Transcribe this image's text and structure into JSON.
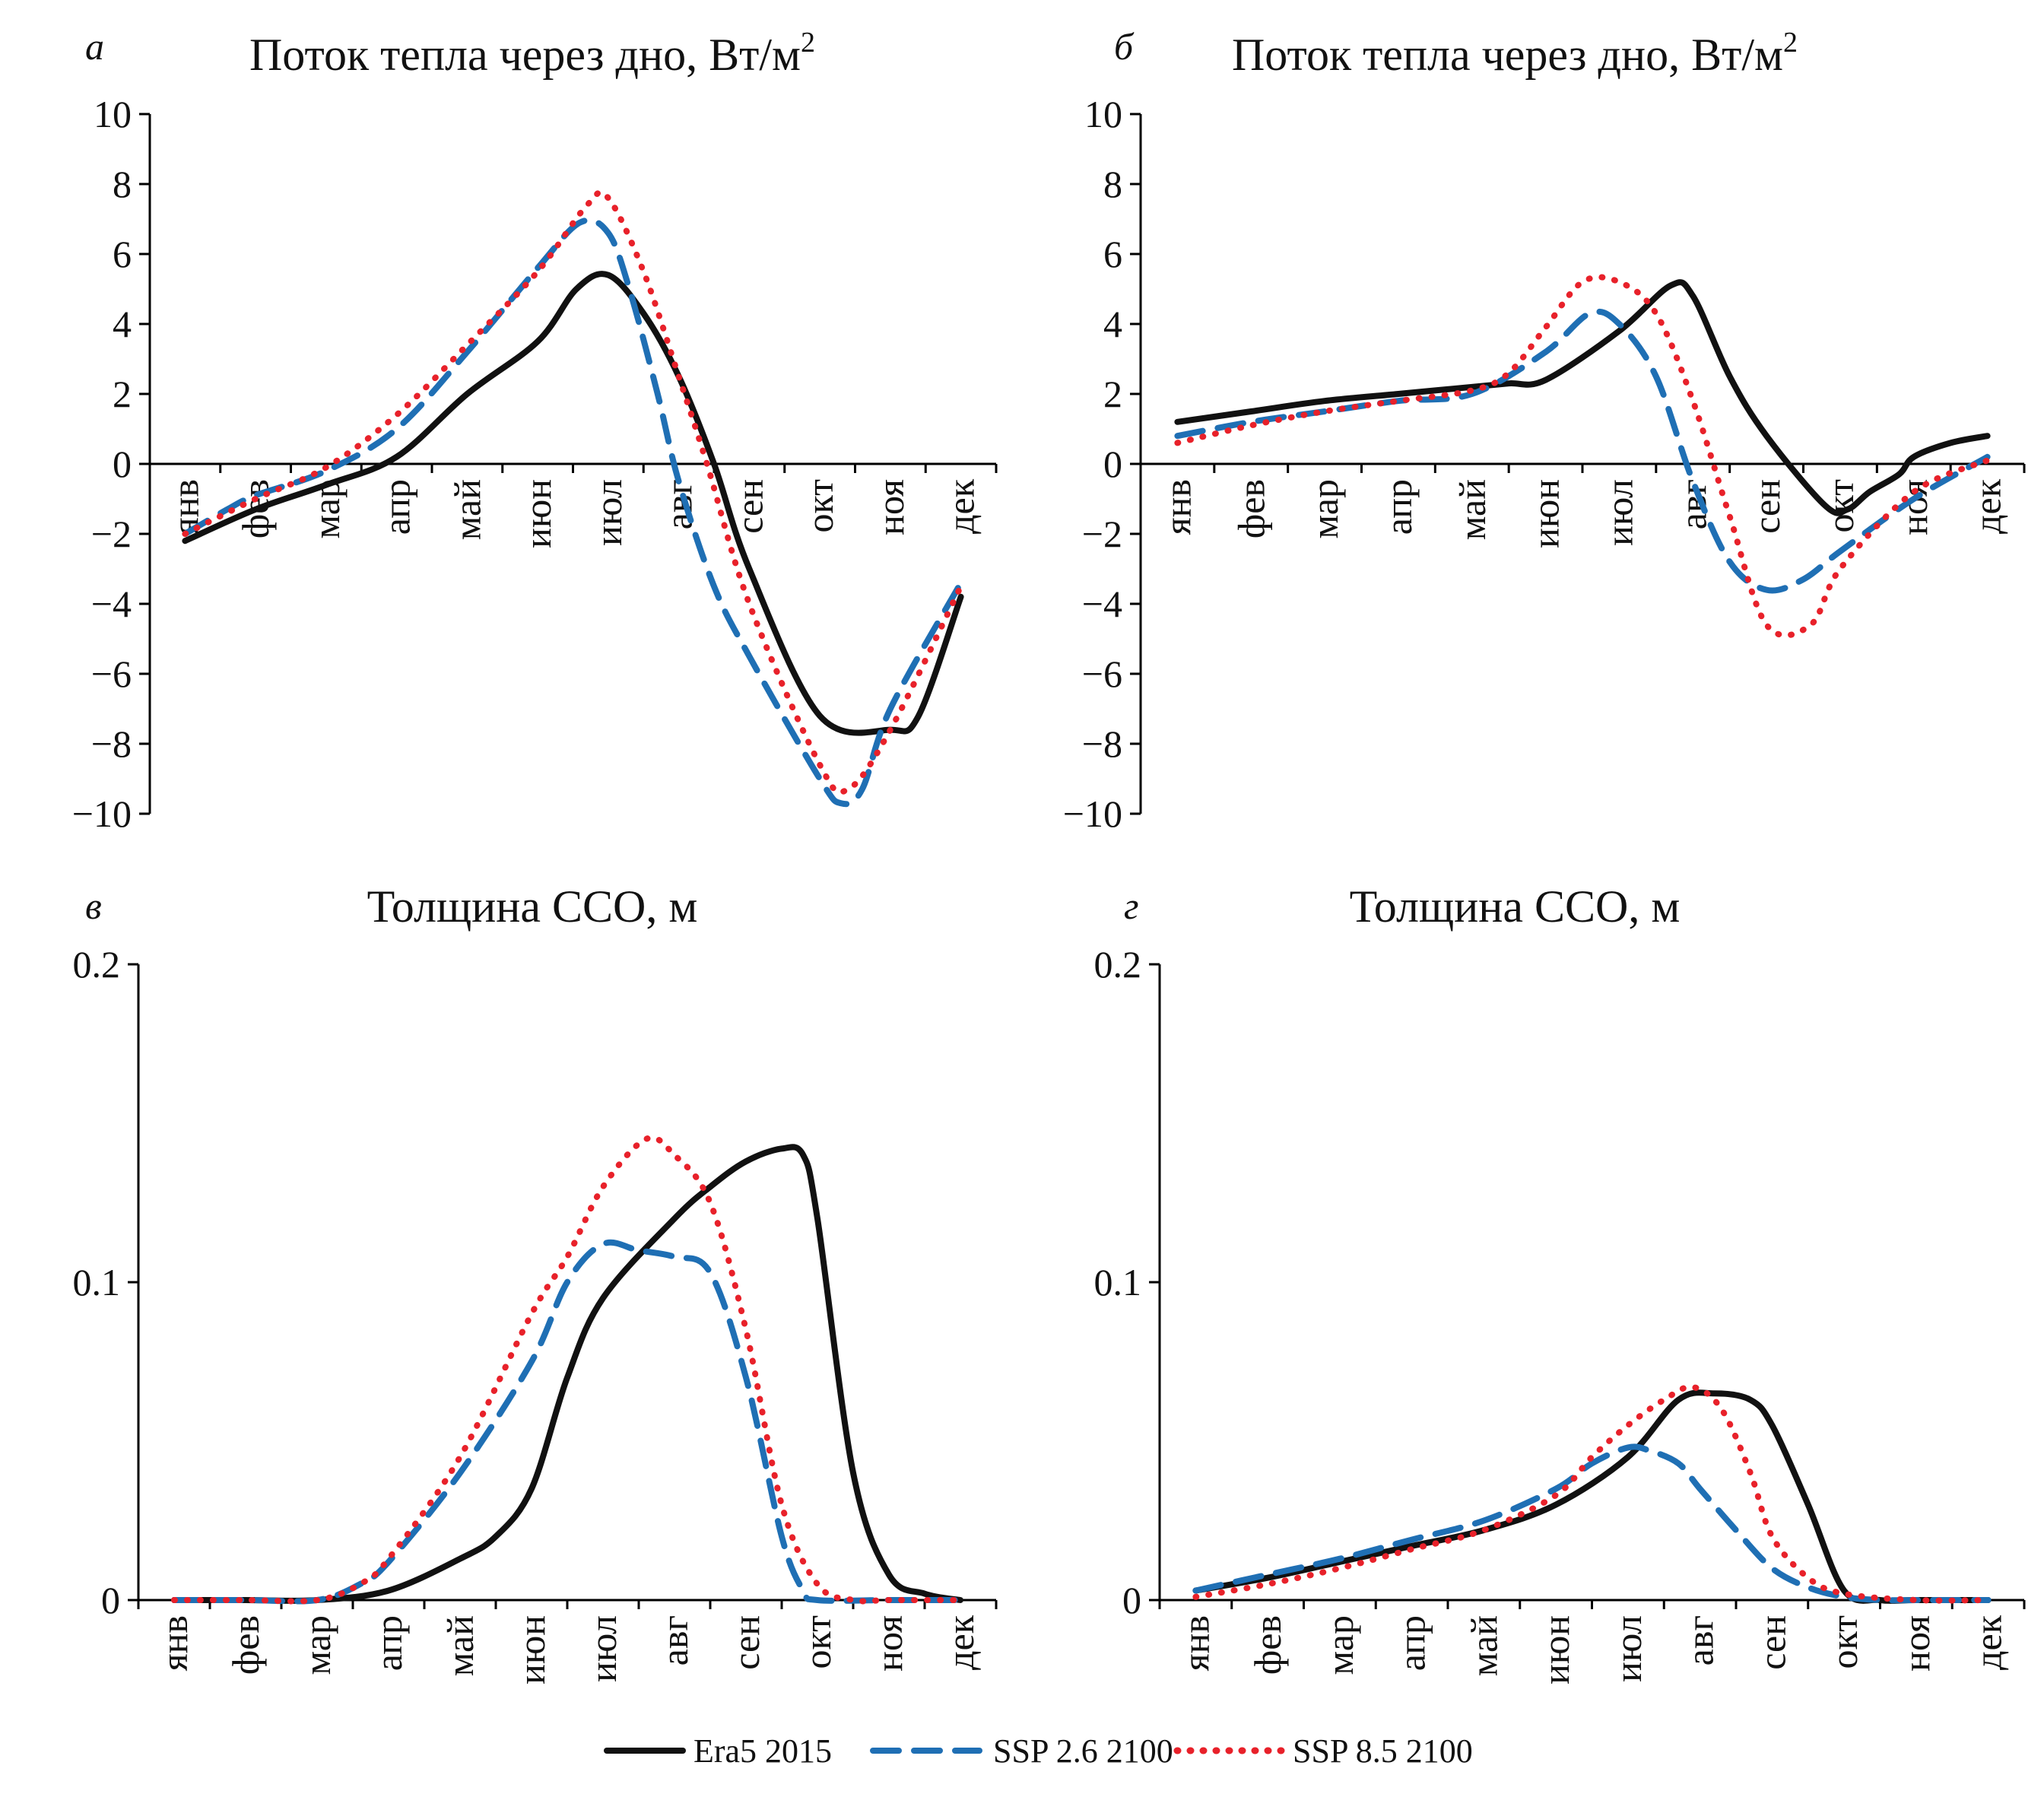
{
  "colors": {
    "Era5 2015": "#111111",
    "SSP 2.6 2100": "#1f6fb4",
    "SSP 8.5 2100": "#e8212a"
  },
  "legend": [
    "Era5 2015",
    "SSP 2.6 2100",
    "SSP 8.5 2100"
  ],
  "chart_data": [
    {
      "panel": "а",
      "type": "line",
      "title": "Поток тепла через дно, Вт/м",
      "title_sup": "2",
      "categories": [
        "янв",
        "фев",
        "мар",
        "апр",
        "май",
        "июн",
        "июл",
        "авг",
        "сен",
        "окт",
        "ноя",
        "дек"
      ],
      "ylim": [
        -10,
        10
      ],
      "yticks": [
        10,
        8,
        6,
        4,
        2,
        0,
        -2,
        -4,
        -6,
        -8,
        -10
      ],
      "ytick_labels": [
        "10",
        "8",
        "6",
        "4",
        "2",
        "0",
        "−2",
        "−4",
        "−6",
        "−8",
        "−10"
      ],
      "series": [
        {
          "name": "Era5 2015",
          "style": "solid",
          "x": [
            0,
            1,
            2,
            3,
            4,
            5,
            5.55,
            6,
            6.5,
            7,
            7.5,
            8,
            9,
            10,
            10.4,
            11
          ],
          "values": [
            -2.2,
            -1.3,
            -0.6,
            0.2,
            2.0,
            3.5,
            5.0,
            5.4,
            4.3,
            2.5,
            0.0,
            -3.0,
            -7.2,
            -7.6,
            -7.2,
            -3.8
          ]
        },
        {
          "name": "SSP 2.6 2100",
          "style": "dashed",
          "x": [
            0,
            0.6,
            1,
            2,
            3,
            4,
            5,
            5.6,
            6,
            6.3,
            6.7,
            7,
            7.5,
            8,
            9,
            9.3,
            9.6,
            10,
            11
          ],
          "values": [
            -2.0,
            -1.3,
            -0.9,
            -0.2,
            1.0,
            3.2,
            5.6,
            6.9,
            6.6,
            5.0,
            2.0,
            -0.5,
            -3.5,
            -5.5,
            -9.0,
            -9.7,
            -9.3,
            -7.0,
            -3.4
          ]
        },
        {
          "name": "SSP 8.5 2100",
          "style": "dotted",
          "x": [
            0,
            1,
            2,
            3,
            4,
            5,
            5.7,
            6,
            6.5,
            7,
            7.4,
            8,
            9,
            9.4,
            10,
            11
          ],
          "values": [
            -2.0,
            -1.0,
            -0.1,
            1.4,
            3.4,
            5.5,
            7.4,
            7.6,
            5.5,
            2.5,
            0.0,
            -4.0,
            -8.6,
            -9.3,
            -7.6,
            -3.5
          ]
        }
      ]
    },
    {
      "panel": "б",
      "type": "line",
      "title": "Поток тепла через дно, Вт/м",
      "title_sup": "2",
      "categories": [
        "янв",
        "фев",
        "мар",
        "апр",
        "май",
        "июн",
        "июл",
        "авг",
        "сен",
        "окт",
        "ноя",
        "дек"
      ],
      "ylim": [
        -10,
        10
      ],
      "yticks": [
        10,
        8,
        6,
        4,
        2,
        0,
        -2,
        -4,
        -6,
        -8,
        -10
      ],
      "ytick_labels": [
        "10",
        "8",
        "6",
        "4",
        "2",
        "0",
        "−2",
        "−4",
        "−6",
        "−8",
        "−10"
      ],
      "series": [
        {
          "name": "Era5 2015",
          "style": "solid",
          "x": [
            0,
            1,
            2,
            3,
            4,
            4.5,
            5,
            6,
            6.7,
            7,
            7.5,
            8,
            8.8,
            9.1,
            9.4,
            9.8,
            10,
            10.5,
            11
          ],
          "values": [
            1.2,
            1.5,
            1.8,
            2.0,
            2.2,
            2.3,
            2.4,
            3.8,
            5.1,
            4.8,
            2.5,
            0.8,
            -1.2,
            -1.3,
            -0.8,
            -0.3,
            0.2,
            0.6,
            0.8
          ]
        },
        {
          "name": "SSP 2.6 2100",
          "style": "dashed",
          "x": [
            0,
            1,
            2,
            3,
            4,
            5,
            5.6,
            6,
            6.5,
            7,
            7.5,
            8,
            8.5,
            9,
            10,
            11
          ],
          "values": [
            0.8,
            1.2,
            1.5,
            1.8,
            2.0,
            3.2,
            4.3,
            4.0,
            2.5,
            -0.5,
            -2.8,
            -3.6,
            -3.3,
            -2.5,
            -1.0,
            0.2
          ]
        },
        {
          "name": "SSP 8.5 2100",
          "style": "dotted",
          "x": [
            0,
            1,
            2,
            3,
            4,
            4.5,
            5,
            5.5,
            6,
            6.5,
            7,
            7.5,
            8,
            8.6,
            9,
            10,
            11
          ],
          "values": [
            0.6,
            1.1,
            1.5,
            1.8,
            2.1,
            2.6,
            3.9,
            5.2,
            5.2,
            4.3,
            1.8,
            -1.5,
            -4.6,
            -4.6,
            -3.0,
            -0.8,
            0.1
          ]
        }
      ]
    },
    {
      "panel": "в",
      "type": "line",
      "title": "Толщина ССО, м",
      "categories": [
        "янв",
        "фев",
        "мар",
        "апр",
        "май",
        "июн",
        "июл",
        "авг",
        "сен",
        "окт",
        "ноя",
        "дек"
      ],
      "ylim": [
        0,
        0.2
      ],
      "yticks": [
        0.2,
        0.1,
        0
      ],
      "ytick_labels": [
        "0.2",
        "0.1",
        "0"
      ],
      "series": [
        {
          "name": "Era5 2015",
          "style": "solid",
          "x": [
            0,
            1,
            2,
            3,
            4,
            4.5,
            5,
            5.5,
            6,
            7,
            7.5,
            8,
            8.5,
            8.8,
            9,
            9.5,
            10,
            10.5,
            11
          ],
          "values": [
            0,
            0,
            0,
            0.003,
            0.013,
            0.02,
            0.035,
            0.07,
            0.095,
            0.12,
            0.13,
            0.138,
            0.142,
            0.14,
            0.12,
            0.04,
            0.008,
            0.002,
            0
          ]
        },
        {
          "name": "SSP 2.6 2100",
          "style": "dashed",
          "x": [
            0,
            1,
            2,
            2.6,
            3,
            4,
            5,
            5.5,
            6,
            6.5,
            7,
            7.5,
            8,
            8.5,
            8.8,
            9,
            10,
            11
          ],
          "values": [
            0,
            0,
            0,
            0.005,
            0.012,
            0.04,
            0.075,
            0.1,
            0.112,
            0.11,
            0.108,
            0.103,
            0.07,
            0.02,
            0.003,
            0,
            0,
            0
          ]
        },
        {
          "name": "SSP 8.5 2100",
          "style": "dotted",
          "x": [
            0,
            1,
            2,
            2.6,
            3,
            4,
            5,
            5.5,
            6,
            6.6,
            7,
            7.5,
            8,
            8.5,
            9,
            9.5,
            10,
            11
          ],
          "values": [
            0,
            0,
            0,
            0.005,
            0.013,
            0.045,
            0.09,
            0.108,
            0.13,
            0.145,
            0.14,
            0.125,
            0.085,
            0.03,
            0.005,
            0,
            0,
            0
          ]
        }
      ]
    },
    {
      "panel": "г",
      "type": "line",
      "title": "Толщина ССО, м",
      "categories": [
        "янв",
        "фев",
        "мар",
        "апр",
        "май",
        "июн",
        "июл",
        "авг",
        "сен",
        "окт",
        "ноя",
        "дек"
      ],
      "ylim": [
        0,
        0.2
      ],
      "yticks": [
        0.2,
        0.1,
        0
      ],
      "ytick_labels": [
        "0.2",
        "0.1",
        "0"
      ],
      "series": [
        {
          "name": "Era5 2015",
          "style": "solid",
          "x": [
            0,
            1,
            2,
            3,
            4,
            5,
            6,
            6.7,
            7.2,
            7.7,
            8,
            8.5,
            9,
            9.5,
            10,
            11
          ],
          "values": [
            0.003,
            0.007,
            0.012,
            0.017,
            0.022,
            0.03,
            0.045,
            0.063,
            0.065,
            0.063,
            0.055,
            0.03,
            0.003,
            0,
            0,
            0
          ]
        },
        {
          "name": "SSP 2.6 2100",
          "style": "dashed",
          "x": [
            0,
            1,
            2,
            3,
            4,
            5,
            5.5,
            6,
            6.3,
            6.7,
            7,
            7.5,
            8,
            8.5,
            9,
            9.5,
            10,
            11
          ],
          "values": [
            0.003,
            0.008,
            0.013,
            0.019,
            0.025,
            0.035,
            0.043,
            0.048,
            0.047,
            0.043,
            0.035,
            0.022,
            0.01,
            0.004,
            0.001,
            0,
            0,
            0
          ]
        },
        {
          "name": "SSP 8.5 2100",
          "style": "dotted",
          "x": [
            0,
            1,
            2,
            3,
            4,
            5,
            5.5,
            6,
            6.5,
            6.9,
            7.3,
            7.7,
            8,
            8.5,
            9,
            10,
            11
          ],
          "values": [
            0.001,
            0.005,
            0.01,
            0.016,
            0.022,
            0.033,
            0.045,
            0.055,
            0.063,
            0.067,
            0.06,
            0.04,
            0.02,
            0.007,
            0.002,
            0,
            0
          ]
        }
      ]
    }
  ]
}
